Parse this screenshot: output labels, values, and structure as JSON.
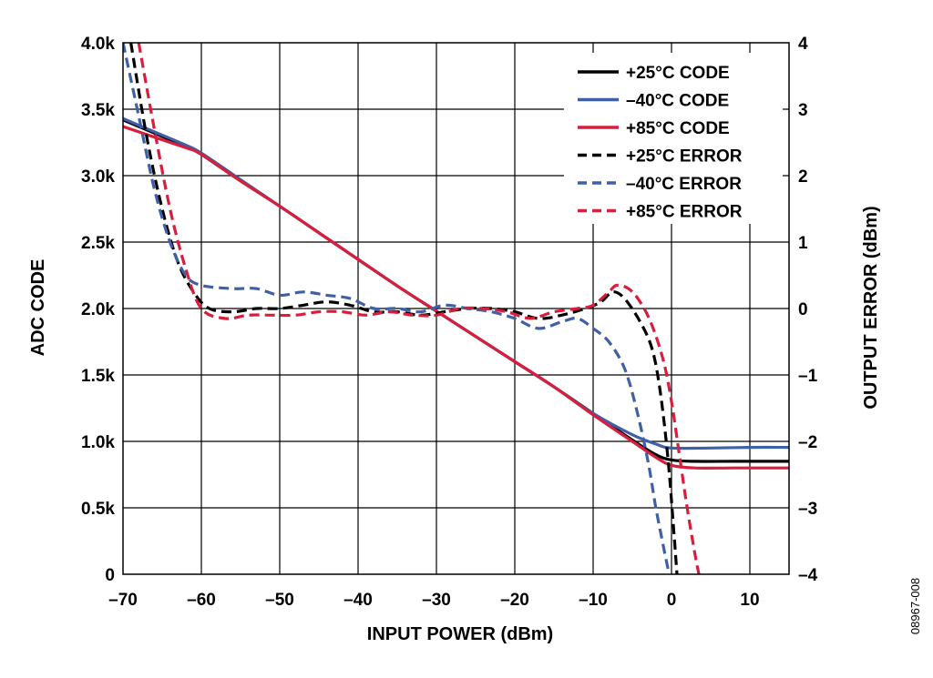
{
  "figure_id": "08967-008",
  "chart_data": {
    "type": "line",
    "xlabel": "INPUT POWER (dBm)",
    "ylabel": "ADC CODE",
    "y2label": "OUTPUT ERROR (dBm)",
    "xlim": [
      -70,
      15
    ],
    "ylim": [
      0,
      4000
    ],
    "y2lim": [
      -4,
      4
    ],
    "grid": true,
    "legend_position": "top-right",
    "x_ticks": [
      {
        "value": -70,
        "label": "–70"
      },
      {
        "value": -60,
        "label": "–60"
      },
      {
        "value": -50,
        "label": "–50"
      },
      {
        "value": -40,
        "label": "–40"
      },
      {
        "value": -30,
        "label": "–30"
      },
      {
        "value": -20,
        "label": "–20"
      },
      {
        "value": -10,
        "label": "–10"
      },
      {
        "value": 0,
        "label": "0"
      },
      {
        "value": 10,
        "label": "10"
      }
    ],
    "y_ticks": [
      {
        "value": 0,
        "label": "0"
      },
      {
        "value": 500,
        "label": "0.5k"
      },
      {
        "value": 1000,
        "label": "1.0k"
      },
      {
        "value": 1500,
        "label": "1.5k"
      },
      {
        "value": 2000,
        "label": "2.0k"
      },
      {
        "value": 2500,
        "label": "2.5k"
      },
      {
        "value": 3000,
        "label": "3.0k"
      },
      {
        "value": 3500,
        "label": "3.5k"
      },
      {
        "value": 4000,
        "label": "4.0k"
      }
    ],
    "y2_ticks": [
      {
        "value": -4,
        "label": "–4"
      },
      {
        "value": -3,
        "label": "–3"
      },
      {
        "value": -2,
        "label": "–2"
      },
      {
        "value": -1,
        "label": "–1"
      },
      {
        "value": 0,
        "label": "0"
      },
      {
        "value": 1,
        "label": "1"
      },
      {
        "value": 2,
        "label": "2"
      },
      {
        "value": 3,
        "label": "3"
      },
      {
        "value": 4,
        "label": "4"
      }
    ],
    "series": [
      {
        "name": "+25°C CODE",
        "axis": "left",
        "color": "#000000",
        "dash": false,
        "points": [
          [
            -70,
            3420
          ],
          [
            -66,
            3320
          ],
          [
            -62,
            3220
          ],
          [
            -60,
            3160
          ],
          [
            -55,
            2960
          ],
          [
            -50,
            2770
          ],
          [
            -45,
            2570
          ],
          [
            -40,
            2370
          ],
          [
            -35,
            2170
          ],
          [
            -30,
            1980
          ],
          [
            -25,
            1790
          ],
          [
            -20,
            1600
          ],
          [
            -15,
            1410
          ],
          [
            -10,
            1210
          ],
          [
            -5,
            1010
          ],
          [
            -2,
            900
          ],
          [
            0,
            860
          ],
          [
            3,
            850
          ],
          [
            8,
            850
          ],
          [
            15,
            850
          ]
        ]
      },
      {
        "name": "–40°C CODE",
        "axis": "left",
        "color": "#3f5fa6",
        "dash": false,
        "points": [
          [
            -70,
            3430
          ],
          [
            -66,
            3330
          ],
          [
            -62,
            3230
          ],
          [
            -60,
            3170
          ],
          [
            -55,
            2970
          ],
          [
            -50,
            2770
          ],
          [
            -45,
            2570
          ],
          [
            -40,
            2370
          ],
          [
            -35,
            2170
          ],
          [
            -30,
            1980
          ],
          [
            -25,
            1790
          ],
          [
            -20,
            1600
          ],
          [
            -15,
            1410
          ],
          [
            -10,
            1210
          ],
          [
            -5,
            1050
          ],
          [
            -2,
            980
          ],
          [
            0,
            950
          ],
          [
            5,
            950
          ],
          [
            10,
            955
          ],
          [
            15,
            955
          ]
        ]
      },
      {
        "name": "+85°C CODE",
        "axis": "left",
        "color": "#d81e3c",
        "dash": false,
        "points": [
          [
            -70,
            3370
          ],
          [
            -66,
            3290
          ],
          [
            -62,
            3210
          ],
          [
            -60,
            3160
          ],
          [
            -55,
            2960
          ],
          [
            -50,
            2770
          ],
          [
            -45,
            2570
          ],
          [
            -40,
            2370
          ],
          [
            -35,
            2170
          ],
          [
            -30,
            1980
          ],
          [
            -25,
            1790
          ],
          [
            -20,
            1600
          ],
          [
            -15,
            1410
          ],
          [
            -10,
            1200
          ],
          [
            -5,
            1000
          ],
          [
            -2,
            880
          ],
          [
            0,
            820
          ],
          [
            3,
            800
          ],
          [
            8,
            800
          ],
          [
            15,
            800
          ]
        ]
      },
      {
        "name": "+25°C ERROR",
        "axis": "right",
        "color": "#000000",
        "dash": true,
        "points": [
          [
            -69,
            4.0
          ],
          [
            -67,
            2.6
          ],
          [
            -65,
            1.5
          ],
          [
            -63,
            0.7
          ],
          [
            -61,
            0.25
          ],
          [
            -59,
            0.0
          ],
          [
            -56,
            -0.05
          ],
          [
            -53,
            0.0
          ],
          [
            -50,
            0.0
          ],
          [
            -47,
            0.05
          ],
          [
            -44,
            0.1
          ],
          [
            -41,
            0.05
          ],
          [
            -38,
            -0.05
          ],
          [
            -35,
            -0.05
          ],
          [
            -32,
            -0.1
          ],
          [
            -29,
            -0.05
          ],
          [
            -26,
            0.0
          ],
          [
            -23,
            0.0
          ],
          [
            -20,
            -0.05
          ],
          [
            -17,
            -0.15
          ],
          [
            -14,
            -0.1
          ],
          [
            -11,
            0.0
          ],
          [
            -9,
            0.1
          ],
          [
            -7.5,
            0.25
          ],
          [
            -6,
            0.15
          ],
          [
            -4,
            -0.2
          ],
          [
            -2.5,
            -0.6
          ],
          [
            -1.5,
            -1.2
          ],
          [
            -0.5,
            -2.2
          ],
          [
            0.2,
            -3.2
          ],
          [
            0.7,
            -4.0
          ]
        ]
      },
      {
        "name": "–40°C ERROR",
        "axis": "right",
        "color": "#3f5fa6",
        "dash": true,
        "points": [
          [
            -70,
            4.0
          ],
          [
            -68,
            2.9
          ],
          [
            -66,
            1.8
          ],
          [
            -64,
            1.0
          ],
          [
            -62,
            0.5
          ],
          [
            -60,
            0.35
          ],
          [
            -56,
            0.3
          ],
          [
            -53,
            0.3
          ],
          [
            -50,
            0.2
          ],
          [
            -47,
            0.25
          ],
          [
            -44,
            0.2
          ],
          [
            -41,
            0.15
          ],
          [
            -38,
            0.0
          ],
          [
            -35,
            0.0
          ],
          [
            -32,
            -0.05
          ],
          [
            -29,
            0.05
          ],
          [
            -26,
            0.0
          ],
          [
            -23,
            -0.05
          ],
          [
            -20,
            -0.15
          ],
          [
            -17,
            -0.3
          ],
          [
            -14,
            -0.2
          ],
          [
            -12,
            -0.15
          ],
          [
            -10,
            -0.3
          ],
          [
            -8,
            -0.5
          ],
          [
            -6,
            -0.9
          ],
          [
            -4.5,
            -1.5
          ],
          [
            -3,
            -2.3
          ],
          [
            -2,
            -3.0
          ],
          [
            -1,
            -3.6
          ],
          [
            -0.3,
            -4.0
          ]
        ]
      },
      {
        "name": "+85°C ERROR",
        "axis": "right",
        "color": "#d81e3c",
        "dash": true,
        "points": [
          [
            -68,
            4.0
          ],
          [
            -66,
            2.7
          ],
          [
            -64,
            1.5
          ],
          [
            -62,
            0.6
          ],
          [
            -60,
            0.0
          ],
          [
            -57,
            -0.15
          ],
          [
            -54,
            -0.1
          ],
          [
            -51,
            -0.1
          ],
          [
            -48,
            -0.1
          ],
          [
            -45,
            -0.05
          ],
          [
            -42,
            -0.05
          ],
          [
            -39,
            -0.1
          ],
          [
            -36,
            -0.05
          ],
          [
            -33,
            -0.1
          ],
          [
            -30,
            -0.1
          ],
          [
            -27,
            0.0
          ],
          [
            -24,
            0.0
          ],
          [
            -21,
            -0.05
          ],
          [
            -18,
            -0.15
          ],
          [
            -15,
            -0.05
          ],
          [
            -12,
            0.0
          ],
          [
            -10,
            0.05
          ],
          [
            -8,
            0.25
          ],
          [
            -7,
            0.35
          ],
          [
            -5.5,
            0.3
          ],
          [
            -4,
            0.1
          ],
          [
            -2.5,
            -0.25
          ],
          [
            -1,
            -0.8
          ],
          [
            0,
            -1.4
          ],
          [
            1,
            -2.2
          ],
          [
            2,
            -3.0
          ],
          [
            3,
            -3.7
          ],
          [
            3.5,
            -4.0
          ]
        ]
      }
    ]
  }
}
